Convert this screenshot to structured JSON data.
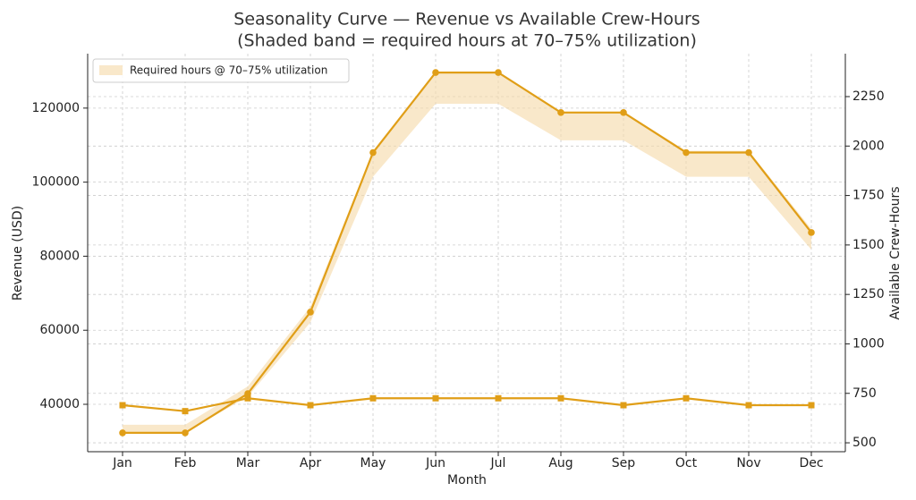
{
  "chart_data": {
    "type": "line",
    "title": "Seasonality Curve — Revenue vs Available Crew-Hours",
    "subtitle": "(Shaded band = required hours at 70–75% utilization)",
    "x_label": "Month",
    "y_label": "Revenue (USD)",
    "y2_label": "Available Crew-Hours",
    "categories": [
      "Jan",
      "Feb",
      "Mar",
      "Apr",
      "May",
      "Jun",
      "Jul",
      "Aug",
      "Sep",
      "Oct",
      "Nov",
      "Dec"
    ],
    "series": [
      {
        "color": "#e09e17",
        "marker": "circle",
        "values": [
          32300,
          32300,
          42900,
          64900,
          108000,
          129600,
          129600,
          118800,
          118800,
          108000,
          108000,
          86400
        ]
      },
      {
        "color": "#e09e17",
        "marker": "square",
        "axis": "y2",
        "values": [
          690,
          660,
          725,
          690,
          725,
          725,
          725,
          725,
          690,
          725,
          690,
          690
        ]
      }
    ],
    "band": {
      "name": "Required hours @ 70–75% utilization",
      "color": "#f5d9a6",
      "axis": "y2",
      "upper": [
        591,
        591,
        785,
        1188,
        1976,
        2372,
        2372,
        2174,
        2174,
        1976,
        1976,
        1581
      ],
      "lower": [
        552,
        552,
        733,
        1109,
        1845,
        2214,
        2214,
        2029,
        2029,
        1845,
        1845,
        1476
      ]
    },
    "ylim": [
      27200,
      134700
    ],
    "yticks": [
      40000,
      60000,
      80000,
      100000,
      120000
    ],
    "y2lim": [
      455,
      2467
    ],
    "y2ticks": [
      500,
      750,
      1000,
      1250,
      1500,
      1750,
      2000,
      2250
    ],
    "grid": true,
    "legend": "upper left"
  }
}
